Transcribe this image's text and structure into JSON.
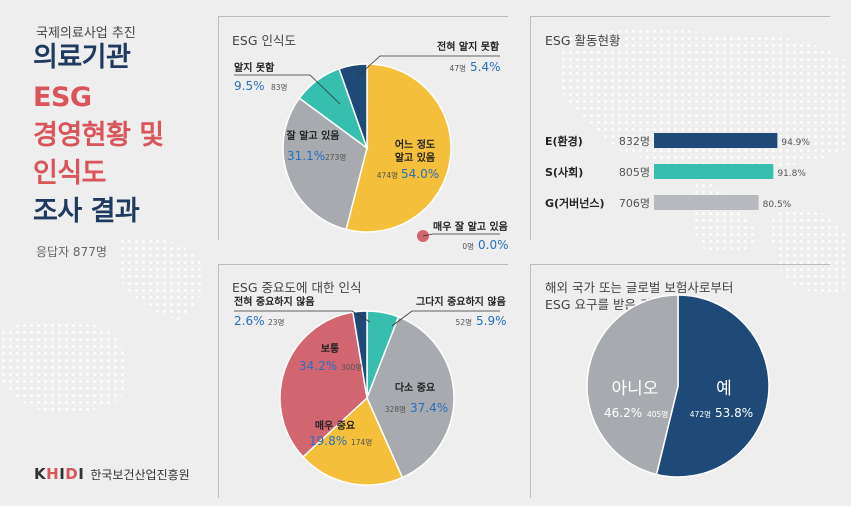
{
  "header": {
    "kicker": "국제의료사업 추진",
    "title_lines": [
      "의료기관",
      "ESG",
      "경영현황 및",
      "인식도",
      "조사 결과"
    ],
    "respondents": "응답자 877명"
  },
  "footer": {
    "logo_k": "K",
    "logo_h": "H",
    "logo_i1": "I",
    "logo_d": "D",
    "logo_i2": "I",
    "org": "한국보건산업진흥원"
  },
  "colors": {
    "navy": "#1f4a78",
    "teal": "#36bfae",
    "grey": "#b6babf",
    "pie_grey": "#a7aaae",
    "yellow": "#f4bf3a",
    "red": "#d26670",
    "title_red": "#d9545b",
    "title_navy": "#1f3a5f",
    "value_blue": "#2a6fbe"
  },
  "chart_data": [
    {
      "type": "pie",
      "title": "ESG 인식도",
      "slices": [
        {
          "label": "어느 정도 알고 있음",
          "count_label": "474명",
          "count": 474,
          "pct_label": "54.0%",
          "value": 54.0,
          "color": "yellow"
        },
        {
          "label": "잘 알고 있음",
          "count_label": "273명",
          "count": 273,
          "pct_label": "31.1%",
          "value": 31.1,
          "color": "pie_grey"
        },
        {
          "label": "알지 못함",
          "count_label": "83명",
          "count": 83,
          "pct_label": "9.5%",
          "value": 9.5,
          "color": "teal"
        },
        {
          "label": "전혀 알지 못함",
          "count_label": "47명",
          "count": 47,
          "pct_label": "5.4%",
          "value": 5.4,
          "color": "navy"
        },
        {
          "label": "매우 잘 알고 있음",
          "count_label": "0명",
          "count": 0,
          "pct_label": "0.0%",
          "value": 0.0,
          "color": "red"
        }
      ]
    },
    {
      "type": "bar",
      "title": "ESG 활동현황",
      "xlim": [
        0,
        100
      ],
      "bars": [
        {
          "category": "E(환경)",
          "count_label": "832명",
          "count": 832,
          "value": 94.9,
          "value_label": "94.9%",
          "color": "navy"
        },
        {
          "category": "S(사회)",
          "count_label": "805명",
          "count": 805,
          "value": 91.8,
          "value_label": "91.8%",
          "color": "teal"
        },
        {
          "category": "G(거버넌스)",
          "count_label": "706명",
          "count": 706,
          "value": 80.5,
          "value_label": "80.5%",
          "color": "grey"
        }
      ]
    },
    {
      "type": "pie",
      "title": "ESG 중요도에 대한 인식",
      "slices": [
        {
          "label": "그다지 중요하지 않음",
          "count_label": "52명",
          "count": 52,
          "pct_label": "5.9%",
          "value": 5.9,
          "color": "teal"
        },
        {
          "label": "다소 중요",
          "count_label": "328명",
          "count": 328,
          "pct_label": "37.4%",
          "value": 37.4,
          "color": "pie_grey"
        },
        {
          "label": "매우 중요",
          "count_label": "174명",
          "count": 174,
          "pct_label": "19.8%",
          "value": 19.8,
          "color": "yellow"
        },
        {
          "label": "보통",
          "count_label": "300명",
          "count": 300,
          "pct_label": "34.2%",
          "value": 34.2,
          "color": "red"
        },
        {
          "label": "전혀 중요하지 않음",
          "count_label": "23명",
          "count": 23,
          "pct_label": "2.6%",
          "value": 2.6,
          "color": "navy"
        }
      ]
    },
    {
      "type": "pie",
      "title_lines": [
        "해외 국가 또는 글로벌 보험사로부터",
        "ESG 요구를 받은 경우"
      ],
      "slices": [
        {
          "label": "예",
          "count_label": "472명",
          "count": 472,
          "pct_label": "53.8%",
          "value": 53.8,
          "color": "navy"
        },
        {
          "label": "아니오",
          "count_label": "405명",
          "count": 405,
          "pct_label": "46.2%",
          "value": 46.2,
          "color": "pie_grey"
        }
      ]
    }
  ]
}
